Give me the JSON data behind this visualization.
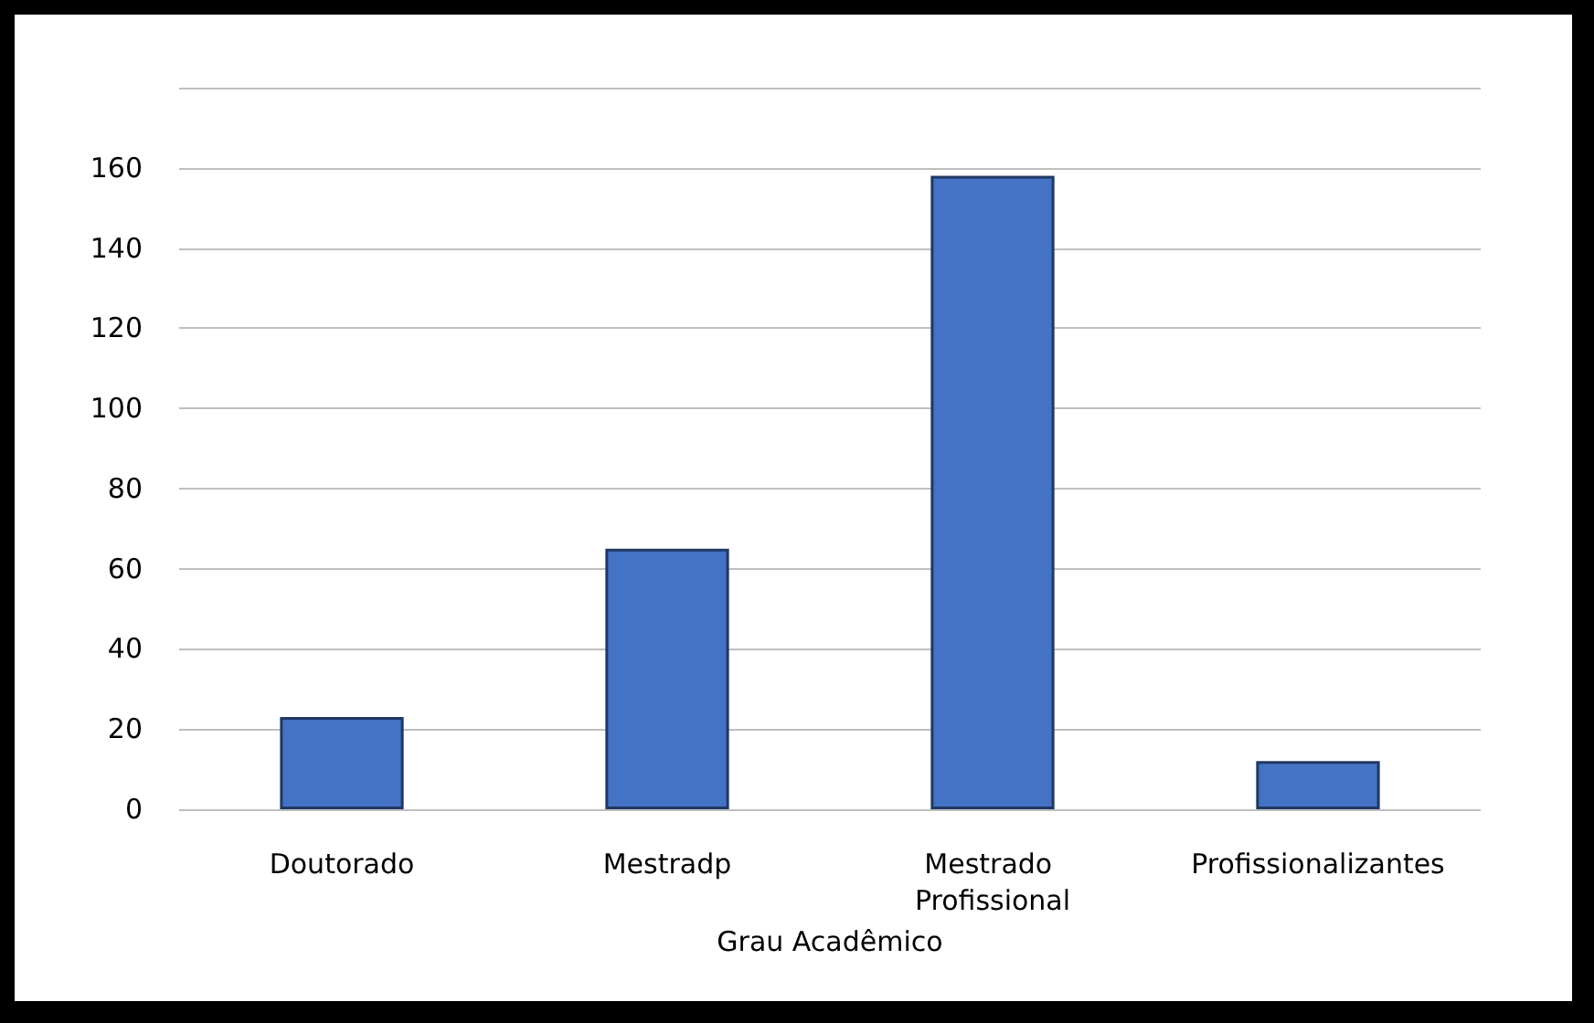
{
  "chart_data": {
    "type": "bar",
    "xlabel": "Grau Acadêmico",
    "categories": [
      "Doutorado",
      "Mestradp",
      "Mestrado Profissional",
      "Profissionalizantes"
    ],
    "values": [
      23,
      65,
      158,
      12
    ],
    "color": "#4472c4",
    "ylim": [
      0,
      180
    ],
    "yticks": [
      0,
      20,
      40,
      60,
      80,
      100,
      120,
      140,
      160,
      {
        "value": 180,
        "label": null
      }
    ],
    "grid": "y"
  }
}
